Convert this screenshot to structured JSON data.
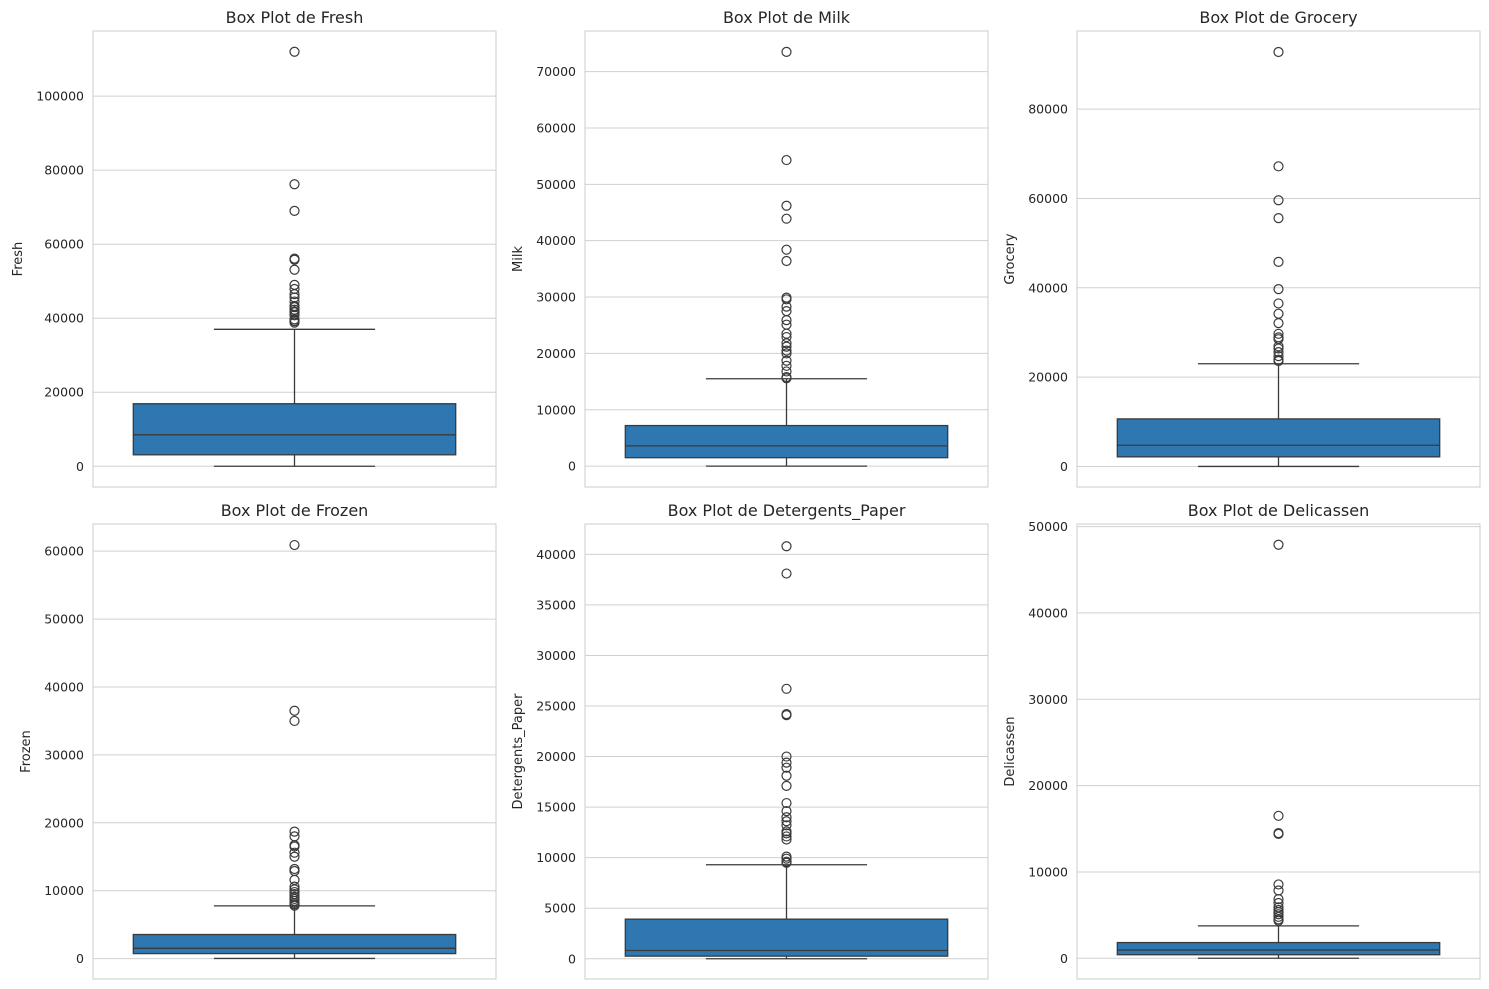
{
  "chart_data": [
    {
      "type": "box",
      "title": "Box Plot de Fresh",
      "ylabel": "Fresh",
      "ylim": [
        -5600,
        117600
      ],
      "yticks": [
        0,
        20000,
        40000,
        60000,
        80000,
        100000
      ],
      "grid": true,
      "box": {
        "q1": 3100,
        "median": 8500,
        "q3": 16900,
        "whisker_low": 0,
        "whisker_high": 37000
      },
      "outliers": [
        112000,
        76200,
        69000,
        56100,
        55800,
        53100,
        49000,
        47900,
        46500,
        45600,
        44500,
        43300,
        43000,
        42300,
        41800,
        41600,
        40800,
        39700,
        39300,
        39200,
        38800
      ]
    },
    {
      "type": "box",
      "title": "Box Plot de Milk",
      "ylabel": "Milk",
      "ylim": [
        -3700,
        77200
      ],
      "yticks": [
        0,
        10000,
        20000,
        30000,
        40000,
        50000,
        60000,
        70000
      ],
      "grid": true,
      "box": {
        "q1": 1500,
        "median": 3600,
        "q3": 7200,
        "whisker_low": 0,
        "whisker_high": 15500
      },
      "outliers": [
        73500,
        54300,
        46200,
        43900,
        38400,
        36400,
        29900,
        29600,
        28300,
        27500,
        25900,
        25100,
        23500,
        22900,
        21800,
        21200,
        20500,
        20000,
        18700,
        17800,
        16800,
        15800,
        15600
      ]
    },
    {
      "type": "box",
      "title": "Box Plot de Grocery",
      "ylabel": "Grocery",
      "ylim": [
        -4600,
        97500
      ],
      "yticks": [
        0,
        20000,
        40000,
        60000,
        80000
      ],
      "grid": true,
      "box": {
        "q1": 2150,
        "median": 4750,
        "q3": 10650,
        "whisker_low": 0,
        "whisker_high": 23000
      },
      "outliers": [
        92800,
        67200,
        59600,
        55600,
        45800,
        39700,
        36500,
        34200,
        32100,
        29700,
        28900,
        28500,
        26900,
        26400,
        25600,
        24700,
        23900,
        23600
      ]
    },
    {
      "type": "box",
      "title": "Box Plot de Frozen",
      "ylabel": "Frozen",
      "ylim": [
        -3000,
        64000
      ],
      "yticks": [
        0,
        10000,
        20000,
        30000,
        40000,
        50000,
        60000
      ],
      "grid": true,
      "box": {
        "q1": 740,
        "median": 1520,
        "q3": 3550,
        "whisker_low": 25,
        "whisker_high": 7770
      },
      "outliers": [
        60900,
        36500,
        35000,
        18700,
        18000,
        16700,
        16500,
        15600,
        15000,
        13200,
        12900,
        11600,
        10600,
        10200,
        9800,
        9500,
        9100,
        8800,
        8500,
        8200,
        8000,
        7800
      ]
    },
    {
      "type": "box",
      "title": "Box Plot de Detergents_Paper",
      "ylabel": "Detergents_Paper",
      "ylim": [
        -2000,
        43000
      ],
      "yticks": [
        0,
        5000,
        10000,
        15000,
        20000,
        25000,
        30000,
        35000,
        40000
      ],
      "grid": true,
      "box": {
        "q1": 260,
        "median": 820,
        "q3": 3920,
        "whisker_low": 3,
        "whisker_high": 9300
      },
      "outliers": [
        40800,
        38100,
        26700,
        24200,
        24100,
        20000,
        19400,
        18900,
        18100,
        17100,
        15400,
        14600,
        14000,
        13600,
        13200,
        12600,
        12400,
        12100,
        11800,
        10100,
        9900,
        9600,
        9500
      ]
    },
    {
      "type": "box",
      "title": "Box Plot de Delicassen",
      "ylabel": "Delicassen",
      "ylim": [
        -2400,
        50300
      ],
      "yticks": [
        0,
        10000,
        20000,
        30000,
        40000,
        50000
      ],
      "grid": true,
      "box": {
        "q1": 410,
        "median": 966,
        "q3": 1820,
        "whisker_low": 3,
        "whisker_high": 3750
      },
      "outliers": [
        47900,
        16500,
        14500,
        14400,
        8550,
        7850,
        6850,
        6400,
        5900,
        5600,
        5350,
        5100,
        4800,
        4500,
        4350
      ]
    }
  ]
}
